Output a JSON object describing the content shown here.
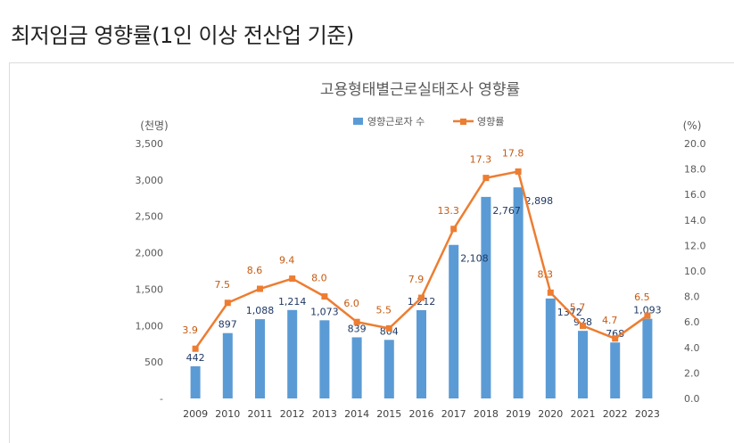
{
  "page": {
    "title": "최저임금 영향률(1인 이상 전산업 기준)"
  },
  "chart_data": {
    "type": "bar+line",
    "title": "고용형태별근로실태조사  영향률",
    "left_axis_unit": "(천명)",
    "right_axis_unit": "(%)",
    "left_ticks": [
      "-",
      "500",
      "1,000",
      "1,500",
      "2,000",
      "2,500",
      "3,000",
      "3,500"
    ],
    "right_ticks": [
      "0.0",
      "2.0",
      "4.0",
      "6.0",
      "8.0",
      "10.0",
      "12.0",
      "14.0",
      "16.0",
      "18.0",
      "20.0"
    ],
    "ylim_left": [
      0,
      3500
    ],
    "ylim_right": [
      0,
      20
    ],
    "categories": [
      "2009",
      "2010",
      "2011",
      "2012",
      "2013",
      "2014",
      "2015",
      "2016",
      "2017",
      "2018",
      "2019",
      "2020",
      "2021",
      "2022",
      "2023"
    ],
    "series": [
      {
        "name": "영향근로자 수",
        "kind": "bar",
        "axis": "left",
        "values": [
          442,
          897,
          1088,
          1214,
          1073,
          839,
          804,
          1212,
          2108,
          2767,
          2898,
          1372,
          928,
          768,
          1093
        ],
        "labels": [
          "442",
          "897",
          "1,088",
          "1,214",
          "1,073",
          "839",
          "804",
          "1,212",
          "2,108",
          "2,767",
          "2,898",
          "1372",
          "928",
          "768",
          "1,093"
        ]
      },
      {
        "name": "영향률",
        "kind": "line",
        "axis": "right",
        "values": [
          3.9,
          7.5,
          8.6,
          9.4,
          8.0,
          6.0,
          5.5,
          7.9,
          13.3,
          17.3,
          17.8,
          8.3,
          5.7,
          4.7,
          6.5
        ],
        "labels": [
          "3.9",
          "7.5",
          "8.6",
          "9.4",
          "8.0",
          "6.0",
          "5.5",
          "7.9",
          "13.3",
          "17.3",
          "17.8",
          "8.3",
          "5.7",
          "4.7",
          "6.5"
        ]
      }
    ],
    "legend_position": "top-center",
    "colors": {
      "bar": "#5b9bd5",
      "line": "#ed7d31",
      "bar_label": "#1f3864",
      "line_label": "#c55a11",
      "axis_text": "#595959"
    }
  }
}
